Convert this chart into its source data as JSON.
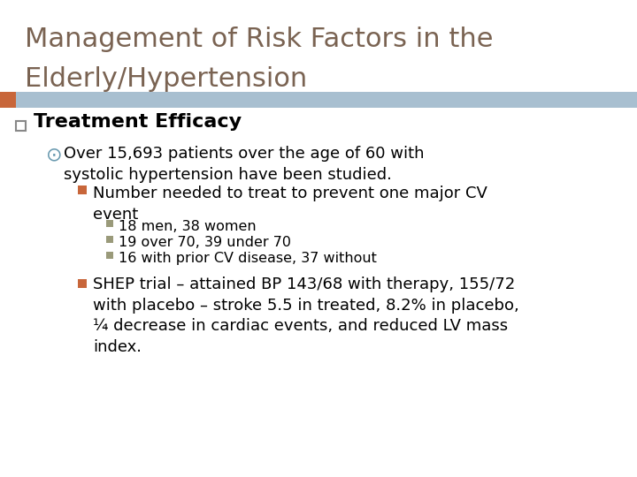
{
  "title_line1": "Management of Risk Factors in the",
  "title_line2": "Elderly/Hypertension",
  "title_color": "#7a6352",
  "title_fontsize": 22,
  "header_bar_color": "#a8bfd0",
  "header_bar_left_color": "#c8663a",
  "background_color": "#ffffff",
  "bullet1_text": "Treatment Efficacy",
  "bullet1_color": "#000000",
  "bullet1_fontsize": 16,
  "bullet1_square_color": "#c0c0c0",
  "bullet1_square_border": "#888888",
  "bullet2_text": "Over 15,693 patients over the age of 60 with\nsystolic hypertension have been studied.",
  "bullet2_color": "#000000",
  "bullet2_fontsize": 13,
  "bullet2_symbol_color": "#6a9ab0",
  "bullet3_text": "Number needed to treat to prevent one major CV\nevent",
  "bullet3_color": "#000000",
  "bullet3_fontsize": 13,
  "bullet3_square_color": "#c8663a",
  "sub_bullets": [
    "18 men, 38 women",
    "19 over 70, 39 under 70",
    "16 with prior CV disease, 37 without"
  ],
  "sub_bullet_color": "#000000",
  "sub_bullet_fontsize": 11.5,
  "sub_bullet_square_color": "#9a9a7a",
  "bullet4_text": "SHEP trial – attained BP 143/68 with therapy, 155/72\nwith placebo – stroke 5.5 in treated, 8.2% in placebo,\n¼ decrease in cardiac events, and reduced LV mass\nindex.",
  "bullet4_color": "#000000",
  "bullet4_fontsize": 13,
  "bullet4_square_color": "#c8663a"
}
